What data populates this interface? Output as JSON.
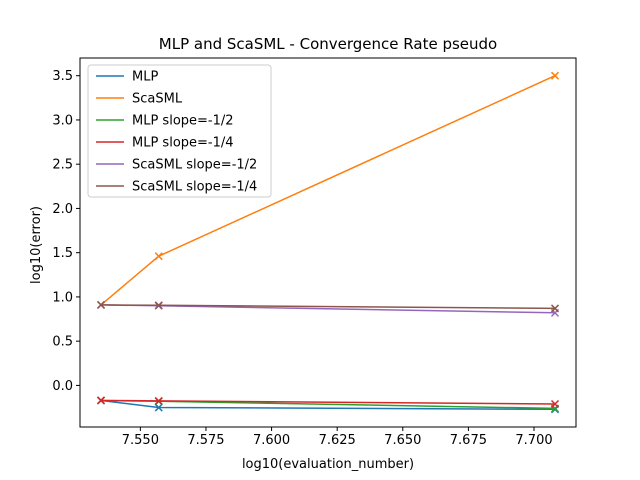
{
  "chart_data": {
    "type": "line",
    "title": "MLP and ScaSML - Convergence Rate pseudo",
    "xlabel": "log10(evaluation_number)",
    "ylabel": "log10(error)",
    "xlim": [
      7.527,
      7.716
    ],
    "ylim": [
      -0.47,
      3.7
    ],
    "xticks": [
      "7.550",
      "7.575",
      "7.600",
      "7.625",
      "7.650",
      "7.675",
      "7.700"
    ],
    "xtick_values": [
      7.55,
      7.575,
      7.6,
      7.625,
      7.65,
      7.675,
      7.7
    ],
    "yticks": [
      "0.0",
      "0.5",
      "1.0",
      "1.5",
      "2.0",
      "2.5",
      "3.0",
      "3.5"
    ],
    "ytick_values": [
      0.0,
      0.5,
      1.0,
      1.5,
      2.0,
      2.5,
      3.0,
      3.5
    ],
    "grid": false,
    "legend_position": "top-left",
    "marker": "x",
    "series": [
      {
        "name": "MLP",
        "color": "#1f77b4",
        "x": [
          7.535,
          7.557,
          7.708
        ],
        "y": [
          -0.17,
          -0.25,
          -0.27
        ]
      },
      {
        "name": "ScaSML",
        "color": "#ff7f0e",
        "x": [
          7.535,
          7.557,
          7.708
        ],
        "y": [
          0.91,
          1.46,
          3.5
        ]
      },
      {
        "name": "MLP slope=-1/2",
        "color": "#2ca02c",
        "x": [
          7.535,
          7.557,
          7.708
        ],
        "y": [
          -0.17,
          -0.18,
          -0.26
        ]
      },
      {
        "name": "MLP slope=-1/4",
        "color": "#d62728",
        "x": [
          7.535,
          7.557,
          7.708
        ],
        "y": [
          -0.17,
          -0.175,
          -0.21
        ]
      },
      {
        "name": "ScaSML slope=-1/2",
        "color": "#9467bd",
        "x": [
          7.535,
          7.557,
          7.708
        ],
        "y": [
          0.91,
          0.9,
          0.82
        ]
      },
      {
        "name": "ScaSML slope=-1/4",
        "color": "#8c564b",
        "x": [
          7.535,
          7.557,
          7.708
        ],
        "y": [
          0.91,
          0.905,
          0.87
        ]
      }
    ]
  }
}
